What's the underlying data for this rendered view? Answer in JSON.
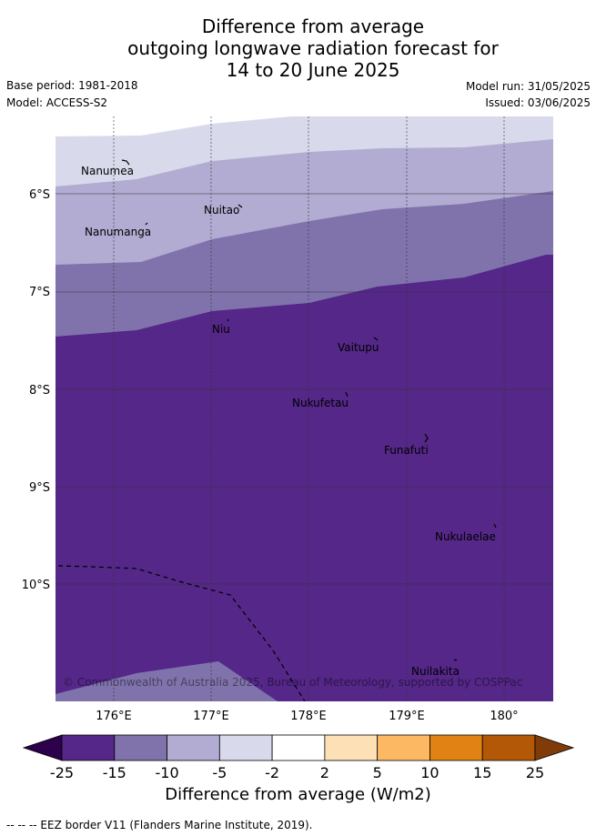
{
  "title": {
    "line1": "Difference from average",
    "line2": "outgoing longwave radiation forecast for",
    "line3": "14 to 20 June 2025"
  },
  "meta": {
    "base_period": "Base period: 1981-2018",
    "model": "Model: ACCESS-S2",
    "model_run": "Model run: 31/05/2025",
    "issued": "Issued: 03/06/2025"
  },
  "axes": {
    "lat_labels": [
      "6°S",
      "7°S",
      "8°S",
      "9°S",
      "10°S"
    ],
    "lon_labels": [
      "176°E",
      "177°E",
      "178°E",
      "179°E",
      "180°"
    ]
  },
  "places": {
    "nanumea": "Nanumea",
    "nuitao": "Nuitao",
    "nanumanga": "Nanumanga",
    "niu": "Niu",
    "vaitupu": "Vaitupu",
    "nukufetau": "Nukufetau",
    "funafuti": "Funafuti",
    "nukulaelae": "Nukulaelae",
    "nuilakita": "Nuilakita"
  },
  "copyright": "© Commonwealth of Australia 2025, Bureau of Meteorology, supported by COSPPac",
  "colorbar": {
    "ticks": [
      "-25",
      "-15",
      "-10",
      "-5",
      "-2",
      "2",
      "5",
      "10",
      "15",
      "25"
    ],
    "colors": [
      "#2d004b",
      "#542788",
      "#8073ac",
      "#b2abd2",
      "#d8daeb",
      "#ffffff",
      "#fee0b6",
      "#fdb863",
      "#e08214",
      "#b35806",
      "#7f3b08"
    ],
    "label": "Difference from average (W/m2)"
  },
  "footnote": "--  --  -- EEZ border V11 (Flanders Marine Institute, 2019)."
}
